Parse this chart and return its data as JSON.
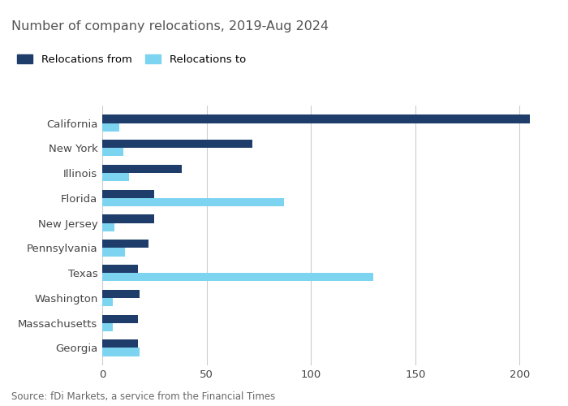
{
  "title": "Number of company relocations, 2019-Aug 2024",
  "categories": [
    "California",
    "New York",
    "Illinois",
    "Florida",
    "New Jersey",
    "Pennsylvania",
    "Texas",
    "Washington",
    "Massachusetts",
    "Georgia"
  ],
  "relocations_from": [
    205,
    72,
    38,
    25,
    25,
    22,
    17,
    18,
    17,
    17
  ],
  "relocations_to": [
    8,
    10,
    13,
    87,
    6,
    11,
    130,
    5,
    5,
    18
  ],
  "color_from": "#1f3d6b",
  "color_to": "#7dd4f0",
  "xlim": [
    0,
    215
  ],
  "xticks": [
    0,
    50,
    100,
    150,
    200
  ],
  "legend_from": "Relocations from",
  "legend_to": "Relocations to",
  "source": "Source: fDi Markets, a service from the Financial Times",
  "background_color": "#ffffff",
  "grid_color": "#cccccc",
  "title_fontsize": 11.5,
  "label_fontsize": 9.5,
  "tick_fontsize": 9.5,
  "source_fontsize": 8.5,
  "title_color": "#555555",
  "label_color": "#444444"
}
